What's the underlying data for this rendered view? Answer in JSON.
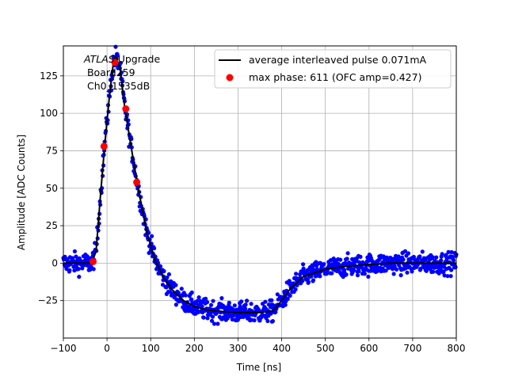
{
  "chart_data": {
    "type": "scatter",
    "xlabel": "Time [ns]",
    "ylabel": "Amplitude [ADC Counts]",
    "xlim": [
      -100,
      800
    ],
    "ylim": [
      -50,
      145
    ],
    "xticks": [
      -100,
      0,
      100,
      200,
      300,
      400,
      500,
      600,
      700,
      800
    ],
    "xtick_labels": [
      "−100",
      "0",
      "100",
      "200",
      "300",
      "400",
      "500",
      "600",
      "700",
      "800"
    ],
    "yticks": [
      -25,
      0,
      25,
      50,
      75,
      100,
      125
    ],
    "ytick_labels": [
      "−25",
      "0",
      "25",
      "50",
      "75",
      "100",
      "125"
    ],
    "grid": true,
    "legend_position": "top-right",
    "annotation": {
      "line1_italic": "ATLAS",
      "line1_rest": " Upgrade",
      "line2": " Board259",
      "line3": " Ch0_1535dB"
    },
    "series": [
      {
        "name": "",
        "kind": "scatter",
        "color": "#0000ff",
        "description_points": [
          [
            -100,
            0
          ],
          [
            -35,
            0
          ],
          [
            -25,
            8
          ],
          [
            -15,
            45
          ],
          [
            -5,
            80
          ],
          [
            5,
            110
          ],
          [
            15,
            135
          ],
          [
            20,
            138
          ],
          [
            30,
            130
          ],
          [
            40,
            105
          ],
          [
            55,
            78
          ],
          [
            70,
            52
          ],
          [
            90,
            22
          ],
          [
            110,
            2
          ],
          [
            130,
            -10
          ],
          [
            150,
            -18
          ],
          [
            175,
            -25
          ],
          [
            200,
            -29
          ],
          [
            225,
            -31
          ],
          [
            250,
            -32
          ],
          [
            300,
            -33
          ],
          [
            350,
            -33
          ],
          [
            380,
            -32
          ],
          [
            400,
            -25
          ],
          [
            420,
            -17
          ],
          [
            450,
            -9
          ],
          [
            500,
            -4
          ],
          [
            550,
            -2
          ],
          [
            600,
            -1
          ],
          [
            650,
            0
          ],
          [
            800,
            0
          ]
        ],
        "noise": 3.5
      },
      {
        "name": "average interleaved pulse 0.071mA",
        "kind": "line",
        "color": "#000000",
        "x": [
          -100,
          -35,
          -25,
          -15,
          -5,
          5,
          15,
          20,
          30,
          40,
          55,
          70,
          90,
          110,
          130,
          150,
          175,
          200,
          225,
          250,
          300,
          350,
          380,
          400,
          420,
          450,
          500,
          550,
          600,
          650,
          800
        ],
        "y": [
          0,
          0,
          8,
          45,
          80,
          110,
          135,
          138,
          130,
          105,
          78,
          52,
          22,
          2,
          -10,
          -18,
          -25,
          -29,
          -31,
          -32,
          -33,
          -33,
          -32,
          -25,
          -17,
          -9,
          -4,
          -2,
          -1,
          0,
          0
        ]
      },
      {
        "name": "max phase: 611 (OFC amp=0.427)",
        "kind": "markers",
        "color": "#ff0000",
        "x": [
          -32,
          -7,
          18,
          43,
          68
        ],
        "y": [
          1,
          78,
          134,
          103,
          54
        ]
      }
    ]
  }
}
